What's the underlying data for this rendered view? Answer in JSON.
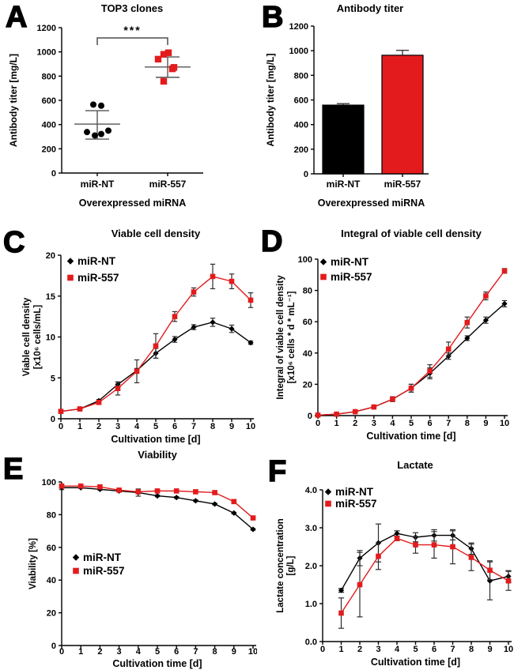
{
  "colors": {
    "red": "#e31b1d",
    "black": "#000000",
    "error_bar": "#2e2e2e",
    "stats_line": "#555555",
    "bracket": "#4d4d4d"
  },
  "chart_data": [
    {
      "panel_letter": "A",
      "type": "scatter",
      "title": "TOP3 clones",
      "ylabel": "Antibody titer [mg/L]",
      "xlabel": "Overexpressed miRNA",
      "ylim": [
        0,
        1200
      ],
      "ystep": 200,
      "categories": [
        "miR-NT",
        "miR-557"
      ],
      "groups": [
        {
          "name": "miR-NT",
          "marker": "circle",
          "color": "black",
          "points": [
            [
              -5,
              565
            ],
            [
              5,
              556
            ],
            [
              -13,
              338
            ],
            [
              -3,
              310
            ],
            [
              5,
              322
            ],
            [
              14,
              350
            ]
          ],
          "mean": 404,
          "sd_low": 280,
          "sd_high": 515
        },
        {
          "name": "miR-557",
          "marker": "square",
          "color": "red",
          "points": [
            [
              -12,
              940
            ],
            [
              -5,
              980
            ],
            [
              1,
              993
            ],
            [
              6,
              860
            ],
            [
              -5,
              757
            ],
            [
              8,
              872
            ]
          ],
          "mean": 875,
          "sd_low": 790,
          "sd_high": 958
        }
      ],
      "significance": "***"
    },
    {
      "panel_letter": "B",
      "type": "bar",
      "title": "Antibody titer",
      "ylabel": "Antibody titer [mg/L]",
      "xlabel": "Overexpressed miRNA",
      "ylim": [
        0,
        1200
      ],
      "ystep": 200,
      "bars": [
        {
          "label": "miR-NT",
          "value": 558,
          "error": 12,
          "color": "black"
        },
        {
          "label": "miR-557",
          "value": 963,
          "error": 40,
          "color": "red"
        }
      ]
    },
    {
      "panel_letter": "C",
      "type": "line",
      "title": "Viable cell density",
      "ylabel_lines": [
        "Viable cell density",
        "[x10⁶ cells/mL]"
      ],
      "xlabel": "Cultivation time [d]",
      "xlim": [
        0,
        10
      ],
      "ylim": [
        0,
        20
      ],
      "ystep": 5,
      "ydec": 0,
      "x": [
        0,
        1,
        2,
        3,
        4,
        5,
        6,
        7,
        8,
        9,
        10
      ],
      "series": [
        {
          "name": "miR-NT",
          "marker": "diamond",
          "color": "black",
          "y": [
            0.9,
            1.2,
            2.2,
            4.2,
            5.9,
            8.0,
            9.7,
            11.2,
            11.8,
            11.0,
            9.3
          ],
          "err": [
            0.1,
            0.1,
            0.15,
            0.3,
            0.25,
            0.6,
            0.35,
            0.3,
            0.5,
            0.45,
            0.2
          ]
        },
        {
          "name": "miR-557",
          "marker": "square",
          "color": "red",
          "y": [
            0.9,
            1.2,
            2.0,
            3.7,
            5.8,
            8.9,
            12.5,
            15.5,
            17.4,
            16.8,
            14.5
          ],
          "err": [
            0.1,
            0.1,
            0.2,
            0.8,
            1.4,
            1.5,
            0.6,
            0.5,
            1.5,
            0.9,
            0.9
          ]
        }
      ]
    },
    {
      "panel_letter": "D",
      "type": "line",
      "title": "Integral of viable cell density",
      "ylabel_lines": [
        "Integral of viable cell density",
        "[x10⁶ cells * d * mL⁻¹]"
      ],
      "xlabel": "Cultivation time [d]",
      "xlim": [
        0,
        10
      ],
      "ylim": [
        0,
        100
      ],
      "ystep": 20,
      "ydec": 0,
      "x": [
        0,
        1,
        2,
        3,
        4,
        5,
        6,
        7,
        8,
        9,
        10
      ],
      "series": [
        {
          "name": "miR-NT",
          "marker": "diamond",
          "color": "black",
          "y": [
            0.3,
            0.9,
            2.5,
            5.5,
            10.5,
            17.5,
            27,
            38,
            49.5,
            61,
            71.5
          ],
          "err": [
            0,
            0.3,
            0.6,
            1,
            1.5,
            2.5,
            3.5,
            2,
            1.5,
            2,
            2
          ]
        },
        {
          "name": "miR-557",
          "marker": "square",
          "color": "red",
          "y": [
            0.3,
            0.9,
            2.5,
            5.5,
            10.5,
            17.5,
            28.5,
            42.5,
            59.5,
            76.5,
            92.5
          ],
          "err": [
            0,
            0.3,
            0.6,
            1,
            1.5,
            2.5,
            4,
            4.5,
            3.5,
            2.5,
            1.5
          ]
        }
      ]
    },
    {
      "panel_letter": "E",
      "type": "line",
      "title": "Viability",
      "ylabel_lines": [
        "Viability [%]"
      ],
      "xlabel": "Cultivation time [d]",
      "xlim": [
        0,
        10
      ],
      "ylim": [
        0,
        100
      ],
      "ystep": 20,
      "ydec": 0,
      "x": [
        0,
        1,
        2,
        3,
        4,
        5,
        6,
        7,
        8,
        9,
        10
      ],
      "series": [
        {
          "name": "miR-NT",
          "marker": "diamond",
          "color": "black",
          "y": [
            96.5,
            96.5,
            95.5,
            94.5,
            93.5,
            91.5,
            90.5,
            88.5,
            86.5,
            81,
            71
          ],
          "err": [
            1.2,
            0.5,
            0.5,
            0.5,
            2.2,
            0.5,
            0.5,
            0.5,
            0.5,
            0.5,
            0.5
          ]
        },
        {
          "name": "miR-557",
          "marker": "square",
          "color": "red",
          "y": [
            97.5,
            97.5,
            97,
            95,
            94,
            94.5,
            94.5,
            94,
            93.5,
            88,
            78
          ],
          "err": [
            1.2,
            0.5,
            0.5,
            0.5,
            0.5,
            0.5,
            0.5,
            0.5,
            0.5,
            0.5,
            0.5
          ]
        }
      ]
    },
    {
      "panel_letter": "F",
      "type": "line",
      "title": "Lactate",
      "ylabel_lines": [
        "Lactate concentration",
        "[g/L]"
      ],
      "xlabel": "Cultivation time [d]",
      "xlim": [
        0,
        10
      ],
      "ylim": [
        0,
        4
      ],
      "ystep": 1,
      "ydec": 1,
      "x": [
        1,
        2,
        3,
        4,
        5,
        6,
        7,
        8,
        9,
        10
      ],
      "series": [
        {
          "name": "miR-NT",
          "marker": "diamond",
          "color": "black",
          "y": [
            1.35,
            2.2,
            2.6,
            2.85,
            2.75,
            2.8,
            2.8,
            2.45,
            1.6,
            1.72
          ],
          "err": [
            0.05,
            0.2,
            0.5,
            0.07,
            0.12,
            0.15,
            0.12,
            0.15,
            0.5,
            0.15
          ]
        },
        {
          "name": "miR-557",
          "marker": "square",
          "color": "red",
          "y": [
            0.75,
            1.5,
            2.25,
            2.72,
            2.55,
            2.55,
            2.5,
            2.22,
            1.88,
            1.6
          ],
          "err": [
            0.4,
            0.85,
            0.35,
            0.06,
            0.22,
            0.35,
            0.45,
            0.35,
            0.25,
            0.25
          ]
        }
      ]
    }
  ]
}
